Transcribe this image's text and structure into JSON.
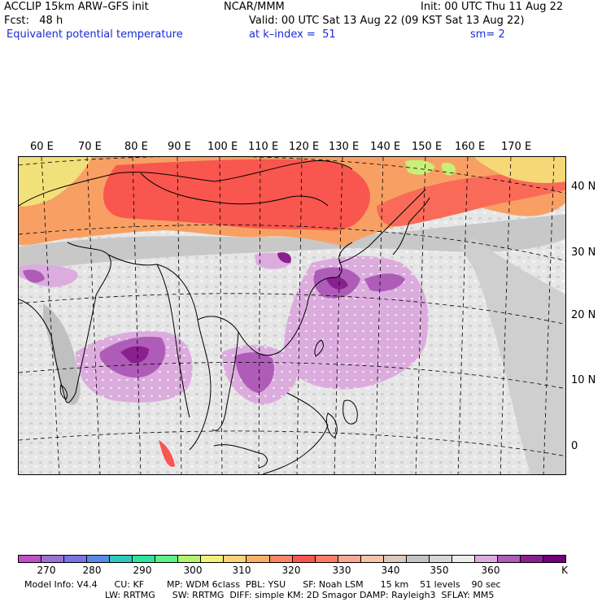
{
  "header": {
    "model": "ACCLIP 15km ARW–GFS init",
    "org": "NCAR/MMM",
    "init": "Init: 00 UTC Thu 11 Aug 22",
    "fcst": "Fcst:   48 h",
    "valid": "Valid: 00 UTC Sat 13 Aug 22 (09 KST Sat 13 Aug 22)",
    "field": "Equivalent potential temperature",
    "level": "at k–index =  51",
    "smooth": "sm= 2"
  },
  "map": {
    "lon_labels": [
      "60 E",
      "70 E",
      "80 E",
      "90 E",
      "100 E",
      "110 E",
      "120 E",
      "130 E",
      "140 E",
      "150 E",
      "160 E",
      "170 E"
    ],
    "lat_labels": [
      "40 N",
      "30 N",
      "20 N",
      "10 N",
      "0"
    ]
  },
  "colorbar": {
    "colors": [
      "#c050c8",
      "#9a72d2",
      "#7a74e2",
      "#5a8ae6",
      "#2ec8bc",
      "#30e2a0",
      "#60f08a",
      "#b4f070",
      "#f2f07a",
      "#fad27a",
      "#f8b064",
      "#fa8464",
      "#f8564e",
      "#fc7c68",
      "#f8a890",
      "#f4c4a8",
      "#dcc8bc",
      "#c4c4c4",
      "#d6d6d6",
      "#ececec",
      "#dcacde",
      "#ae5cb8",
      "#8a2090",
      "#70007a"
    ],
    "labels": [
      "270",
      "280",
      "290",
      "300",
      "310",
      "320",
      "330",
      "340",
      "350",
      "360",
      "K"
    ]
  },
  "footer": {
    "line1": "Model Info: V4.4      CU: KF        MP: WDM 6class  PBL: YSU      SF: Noah LSM      15 km    51 levels    90 sec",
    "line2": "LW: RRTMG      SW: RRTMG  DIFF: simple KM: 2D Smagor DAMP: Rayleigh3  SFLAY: MM5"
  }
}
